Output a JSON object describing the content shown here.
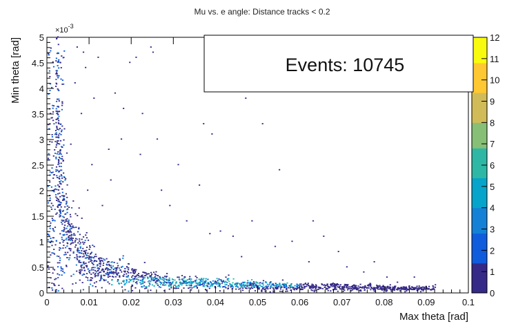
{
  "chart_data": {
    "type": "heatmap",
    "title": "Mu vs. e angle: Distance tracks < 0.2",
    "xlabel": "Max theta [rad]",
    "ylabel": "Min theta [rad]",
    "xlim": [
      0,
      0.1
    ],
    "ylim": [
      0,
      0.005
    ],
    "y_exponent_label": "×10",
    "y_exponent_power": "-3",
    "x_ticks": [
      {
        "value": 0,
        "label": "0"
      },
      {
        "value": 0.01,
        "label": "0.01"
      },
      {
        "value": 0.02,
        "label": "0.02"
      },
      {
        "value": 0.03,
        "label": "0.03"
      },
      {
        "value": 0.04,
        "label": "0.04"
      },
      {
        "value": 0.05,
        "label": "0.05"
      },
      {
        "value": 0.06,
        "label": "0.06"
      },
      {
        "value": 0.07,
        "label": "0.07"
      },
      {
        "value": 0.08,
        "label": "0.08"
      },
      {
        "value": 0.09,
        "label": "0.09"
      },
      {
        "value": 0.1,
        "label": "0.1"
      }
    ],
    "y_ticks": [
      {
        "value": 0,
        "label": "0"
      },
      {
        "value": 0.0005,
        "label": "0.5"
      },
      {
        "value": 0.001,
        "label": "1"
      },
      {
        "value": 0.0015,
        "label": "1.5"
      },
      {
        "value": 0.002,
        "label": "2"
      },
      {
        "value": 0.0025,
        "label": "2.5"
      },
      {
        "value": 0.003,
        "label": "3"
      },
      {
        "value": 0.0035,
        "label": "3.5"
      },
      {
        "value": 0.004,
        "label": "4"
      },
      {
        "value": 0.0045,
        "label": "4.5"
      },
      {
        "value": 0.005,
        "label": "5"
      }
    ],
    "z_ticks": [
      {
        "value": 0,
        "label": "0"
      },
      {
        "value": 1,
        "label": "1"
      },
      {
        "value": 2,
        "label": "2"
      },
      {
        "value": 3,
        "label": "3"
      },
      {
        "value": 4,
        "label": "4"
      },
      {
        "value": 5,
        "label": "5"
      },
      {
        "value": 6,
        "label": "6"
      },
      {
        "value": 7,
        "label": "7"
      },
      {
        "value": 8,
        "label": "8"
      },
      {
        "value": 9,
        "label": "9"
      },
      {
        "value": 10,
        "label": "10"
      },
      {
        "value": 11,
        "label": "11"
      },
      {
        "value": 12,
        "label": "12"
      }
    ],
    "zlim": [
      0,
      12
    ],
    "colormap": [
      "#352a87",
      "#0f5cdd",
      "#1481d6",
      "#06a4ca",
      "#2eb7a4",
      "#87bf77",
      "#d1bb59",
      "#fec832",
      "#f9fb0e"
    ],
    "stats": {
      "label": "Events:",
      "value": "10745"
    },
    "trend_curve": [
      [
        0.002,
        0.0042
      ],
      [
        0.003,
        0.0022
      ],
      [
        0.004,
        0.0015
      ],
      [
        0.005,
        0.0012
      ],
      [
        0.006,
        0.001
      ],
      [
        0.008,
        0.0008
      ],
      [
        0.01,
        0.0006
      ],
      [
        0.012,
        0.00048
      ],
      [
        0.015,
        0.00038
      ],
      [
        0.02,
        0.0003
      ],
      [
        0.025,
        0.00025
      ],
      [
        0.03,
        0.0002
      ],
      [
        0.035,
        0.00018
      ],
      [
        0.04,
        0.00016
      ],
      [
        0.05,
        0.00013
      ],
      [
        0.06,
        0.00011
      ],
      [
        0.07,
        0.0001
      ],
      [
        0.08,
        8e-05
      ],
      [
        0.09,
        7e-05
      ]
    ],
    "dense_band": {
      "x_range": [
        0.015,
        0.06
      ],
      "y_range": [
        0.0001,
        0.0003
      ],
      "z_peak": 6
    },
    "isolated_points": [
      [
        0.007,
        0.0048
      ],
      [
        0.0085,
        0.0047
      ],
      [
        0.012,
        0.0046
      ],
      [
        0.025,
        0.0047
      ],
      [
        0.0245,
        0.0048
      ],
      [
        0.003,
        0.0045
      ],
      [
        0.009,
        0.0044
      ],
      [
        0.011,
        0.0038
      ],
      [
        0.008,
        0.0035
      ],
      [
        0.004,
        0.0032
      ],
      [
        0.021,
        0.0046
      ],
      [
        0.0195,
        0.0045
      ],
      [
        0.016,
        0.0039
      ],
      [
        0.018,
        0.0036
      ],
      [
        0.026,
        0.003
      ],
      [
        0.052,
        0.0041
      ],
      [
        0.047,
        0.0038
      ],
      [
        0.051,
        0.0033
      ],
      [
        0.037,
        0.0033
      ],
      [
        0.039,
        0.0031
      ],
      [
        0.055,
        0.0024
      ],
      [
        0.036,
        0.0021
      ],
      [
        0.022,
        0.0027
      ],
      [
        0.015,
        0.0022
      ],
      [
        0.013,
        0.0017
      ],
      [
        0.041,
        0.0012
      ],
      [
        0.044,
        0.0011
      ],
      [
        0.058,
        0.001
      ],
      [
        0.063,
        0.0014
      ],
      [
        0.069,
        0.0008
      ],
      [
        0.071,
        0.0005
      ],
      [
        0.075,
        0.0004
      ],
      [
        0.083,
        0.0002
      ],
      [
        0.092,
        0.00015
      ],
      [
        0.087,
        0.0003
      ],
      [
        0.029,
        0.0017
      ],
      [
        0.033,
        0.0014
      ],
      [
        0.046,
        0.0007
      ],
      [
        0.054,
        0.0009
      ],
      [
        0.062,
        0.0006
      ],
      [
        0.027,
        0.002
      ],
      [
        0.031,
        0.0025
      ],
      [
        0.0225,
        0.0035
      ],
      [
        0.0175,
        0.003
      ],
      [
        0.0145,
        0.0028
      ],
      [
        0.0065,
        0.0041
      ],
      [
        0.0055,
        0.0029
      ],
      [
        0.0105,
        0.0025
      ],
      [
        0.0095,
        0.002
      ],
      [
        0.0035,
        0.0037
      ],
      [
        0.0385,
        0.00115
      ],
      [
        0.0485,
        0.0014
      ],
      [
        0.0655,
        0.0011
      ],
      [
        0.0775,
        0.0006
      ],
      [
        0.0805,
        0.0003
      ]
    ]
  }
}
